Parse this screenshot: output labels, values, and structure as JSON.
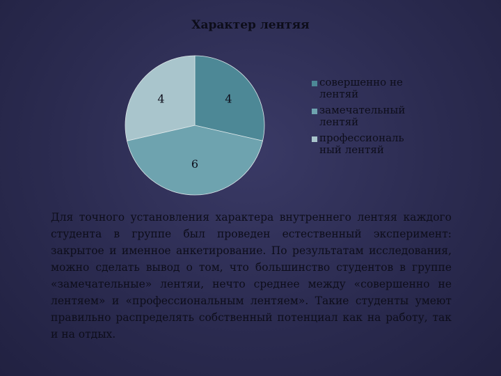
{
  "chart_data": {
    "type": "pie",
    "title": "Характер лентяя",
    "series": [
      {
        "name": "совершенно не лентяй",
        "value": 4,
        "color": "#4d8896"
      },
      {
        "name": "замечательный лентяй",
        "value": 6,
        "color": "#6ea3af"
      },
      {
        "name": "профессиональный лентяй",
        "value": 4,
        "color": "#a9c5cc"
      }
    ],
    "legend_placement": "right",
    "legend_lines": [
      [
        "совершенно не",
        "лентяй"
      ],
      [
        "замечательный",
        "лентяй"
      ],
      [
        "профессиональ",
        "ный лентяй"
      ]
    ]
  },
  "paragraph": "Для точного установления характера внутреннего лентяя каждого студента в группе был проведен естественный эксперимент: закрытое и именное анкетирование. По результатам исследования, можно сделать вывод о том, что большинство студентов в группе «замечательные» лентяи, нечто среднее между «совершенно не лентяем» и «профессиональным лентяем». Такие студенты умеют правильно распределять собственный потенциал как на работу, так и на отдых."
}
